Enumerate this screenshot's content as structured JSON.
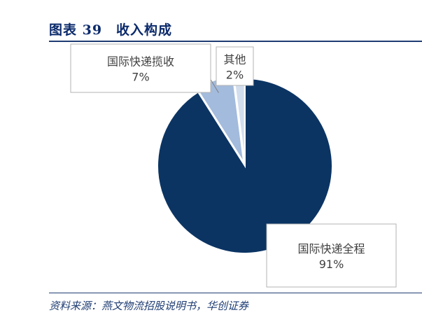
{
  "figure": {
    "title": "图表 39　收入构成",
    "source": "资料来源：燕文物流招股说明书，华创证券"
  },
  "colors": {
    "title": "#0b2a6b",
    "rule": "#1f3d73",
    "slices": [
      "#0b3463",
      "#a3bbdc",
      "#d2deee"
    ],
    "callout_border": "#b3b3b3",
    "label_text": "#404040"
  },
  "chart_data": {
    "type": "pie",
    "title": "",
    "slices": [
      {
        "label": "国际快递全程",
        "value": 91,
        "display": "91%"
      },
      {
        "label": "国际快递揽收",
        "value": 7,
        "display": "7%"
      },
      {
        "label": "其他",
        "value": 2,
        "display": "2%"
      }
    ]
  }
}
